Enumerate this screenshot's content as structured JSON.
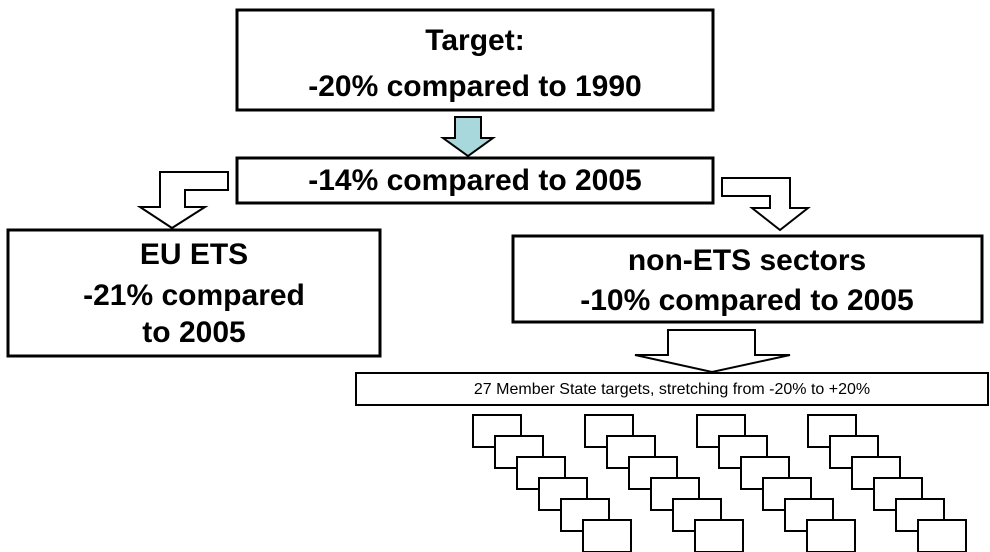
{
  "target": {
    "lines": [
      "Target:",
      "-20% compared to 1990"
    ]
  },
  "overall": {
    "text": "-14% compared to 2005"
  },
  "ets": {
    "lines": [
      "EU ETS",
      "-21% compared",
      "to 2005"
    ]
  },
  "non_ets": {
    "lines": [
      "non-ETS sectors",
      "-10% compared to 2005"
    ]
  },
  "member_states": {
    "text": "27 Member State targets, stretching from -20% to +20%"
  }
}
